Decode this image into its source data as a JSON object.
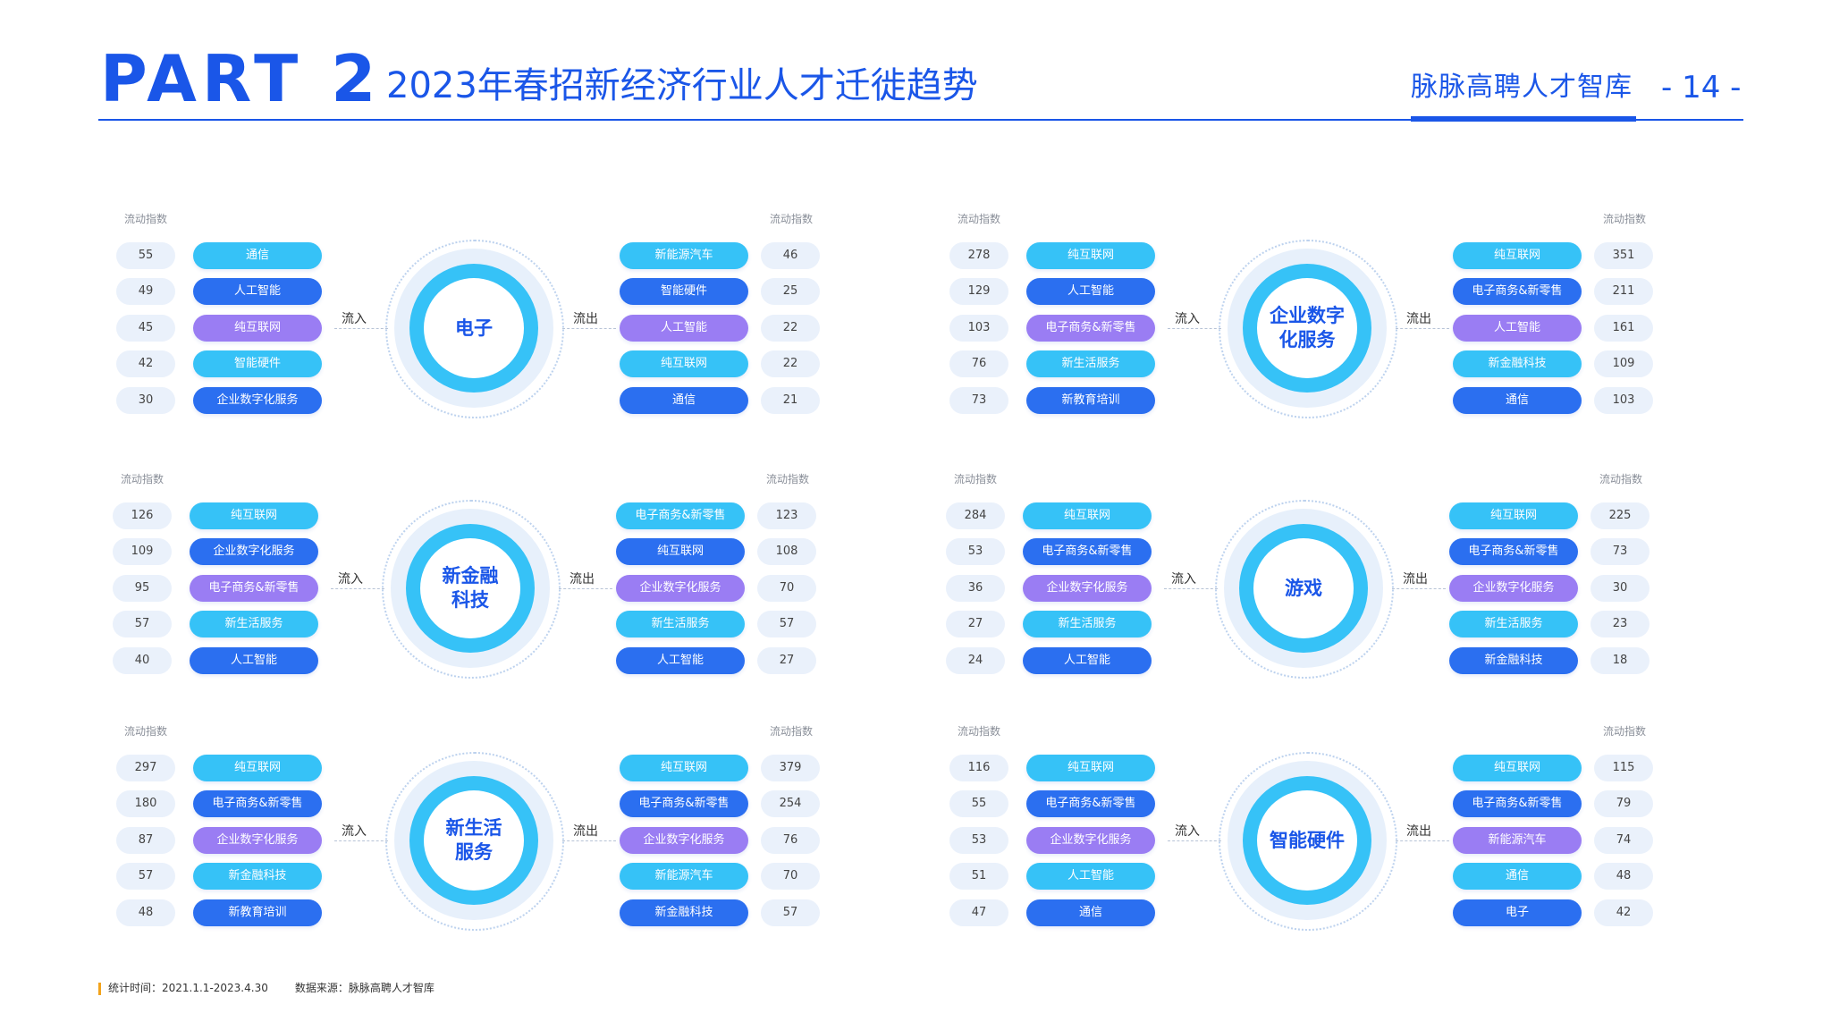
{
  "header": {
    "part": "PART  2",
    "title": "2023年春招新经济行业人才迁徙趋势",
    "brand": "脉脉高聘人才智库",
    "page_number": "- 14 -"
  },
  "labels": {
    "index": "流动指数",
    "inflow": "流入",
    "outflow": "流出"
  },
  "panels": [
    {
      "industry": "电子",
      "inflow": [
        {
          "industry": "通信",
          "value": "55"
        },
        {
          "industry": "人工智能",
          "value": "49"
        },
        {
          "industry": "纯互联网",
          "value": "45"
        },
        {
          "industry": "智能硬件",
          "value": "42"
        },
        {
          "industry": "企业数字化服务",
          "value": "30"
        }
      ],
      "outflow": [
        {
          "industry": "新能源汽车",
          "value": "46"
        },
        {
          "industry": "智能硬件",
          "value": "25"
        },
        {
          "industry": "人工智能",
          "value": "22"
        },
        {
          "industry": "纯互联网",
          "value": "22"
        },
        {
          "industry": "通信",
          "value": "21"
        }
      ]
    },
    {
      "industry": "企业数字\n化服务",
      "inflow": [
        {
          "industry": "纯互联网",
          "value": "278"
        },
        {
          "industry": "人工智能",
          "value": "129"
        },
        {
          "industry": "电子商务&新零售",
          "value": "103"
        },
        {
          "industry": "新生活服务",
          "value": "76"
        },
        {
          "industry": "新教育培训",
          "value": "73"
        }
      ],
      "outflow": [
        {
          "industry": "纯互联网",
          "value": "351"
        },
        {
          "industry": "电子商务&新零售",
          "value": "211"
        },
        {
          "industry": "人工智能",
          "value": "161"
        },
        {
          "industry": "新金融科技",
          "value": "109"
        },
        {
          "industry": "通信",
          "value": "103"
        }
      ]
    },
    {
      "industry": "新金融\n科技",
      "inflow": [
        {
          "industry": "纯互联网",
          "value": "126"
        },
        {
          "industry": "企业数字化服务",
          "value": "109"
        },
        {
          "industry": "电子商务&新零售",
          "value": "95"
        },
        {
          "industry": "新生活服务",
          "value": "57"
        },
        {
          "industry": "人工智能",
          "value": "40"
        }
      ],
      "outflow": [
        {
          "industry": "电子商务&新零售",
          "value": "123"
        },
        {
          "industry": "纯互联网",
          "value": "108"
        },
        {
          "industry": "企业数字化服务",
          "value": "70"
        },
        {
          "industry": "新生活服务",
          "value": "57"
        },
        {
          "industry": "人工智能",
          "value": "27"
        }
      ]
    },
    {
      "industry": "游戏",
      "inflow": [
        {
          "industry": "纯互联网",
          "value": "284"
        },
        {
          "industry": "电子商务&新零售",
          "value": "53"
        },
        {
          "industry": "企业数字化服务",
          "value": "36"
        },
        {
          "industry": "新生活服务",
          "value": "27"
        },
        {
          "industry": "人工智能",
          "value": "24"
        }
      ],
      "outflow": [
        {
          "industry": "纯互联网",
          "value": "225"
        },
        {
          "industry": "电子商务&新零售",
          "value": "73"
        },
        {
          "industry": "企业数字化服务",
          "value": "30"
        },
        {
          "industry": "新生活服务",
          "value": "23"
        },
        {
          "industry": "新金融科技",
          "value": "18"
        }
      ]
    },
    {
      "industry": "新生活\n服务",
      "inflow": [
        {
          "industry": "纯互联网",
          "value": "297"
        },
        {
          "industry": "电子商务&新零售",
          "value": "180"
        },
        {
          "industry": "企业数字化服务",
          "value": "87"
        },
        {
          "industry": "新金融科技",
          "value": "57"
        },
        {
          "industry": "新教育培训",
          "value": "48"
        }
      ],
      "outflow": [
        {
          "industry": "纯互联网",
          "value": "379"
        },
        {
          "industry": "电子商务&新零售",
          "value": "254"
        },
        {
          "industry": "企业数字化服务",
          "value": "76"
        },
        {
          "industry": "新能源汽车",
          "value": "70"
        },
        {
          "industry": "新金融科技",
          "value": "57"
        }
      ]
    },
    {
      "industry": "智能硬件",
      "inflow": [
        {
          "industry": "纯互联网",
          "value": "116"
        },
        {
          "industry": "电子商务&新零售",
          "value": "55"
        },
        {
          "industry": "企业数字化服务",
          "value": "53"
        },
        {
          "industry": "人工智能",
          "value": "51"
        },
        {
          "industry": "通信",
          "value": "47"
        }
      ],
      "outflow": [
        {
          "industry": "纯互联网",
          "value": "115"
        },
        {
          "industry": "电子商务&新零售",
          "value": "79"
        },
        {
          "industry": "新能源汽车",
          "value": "74"
        },
        {
          "industry": "通信",
          "value": "48"
        },
        {
          "industry": "电子",
          "value": "42"
        }
      ]
    }
  ],
  "footer": {
    "period": "统计时间：2021.1.1-2023.4.30",
    "source": "数据来源：脉脉高聘人才智库"
  },
  "colors": {
    "brand_blue": "#1a56e8",
    "cyan": "#36c2f7",
    "blue": "#2b6ff0",
    "purple": "#9a7df3",
    "number_bg": "#eaf1fb"
  }
}
